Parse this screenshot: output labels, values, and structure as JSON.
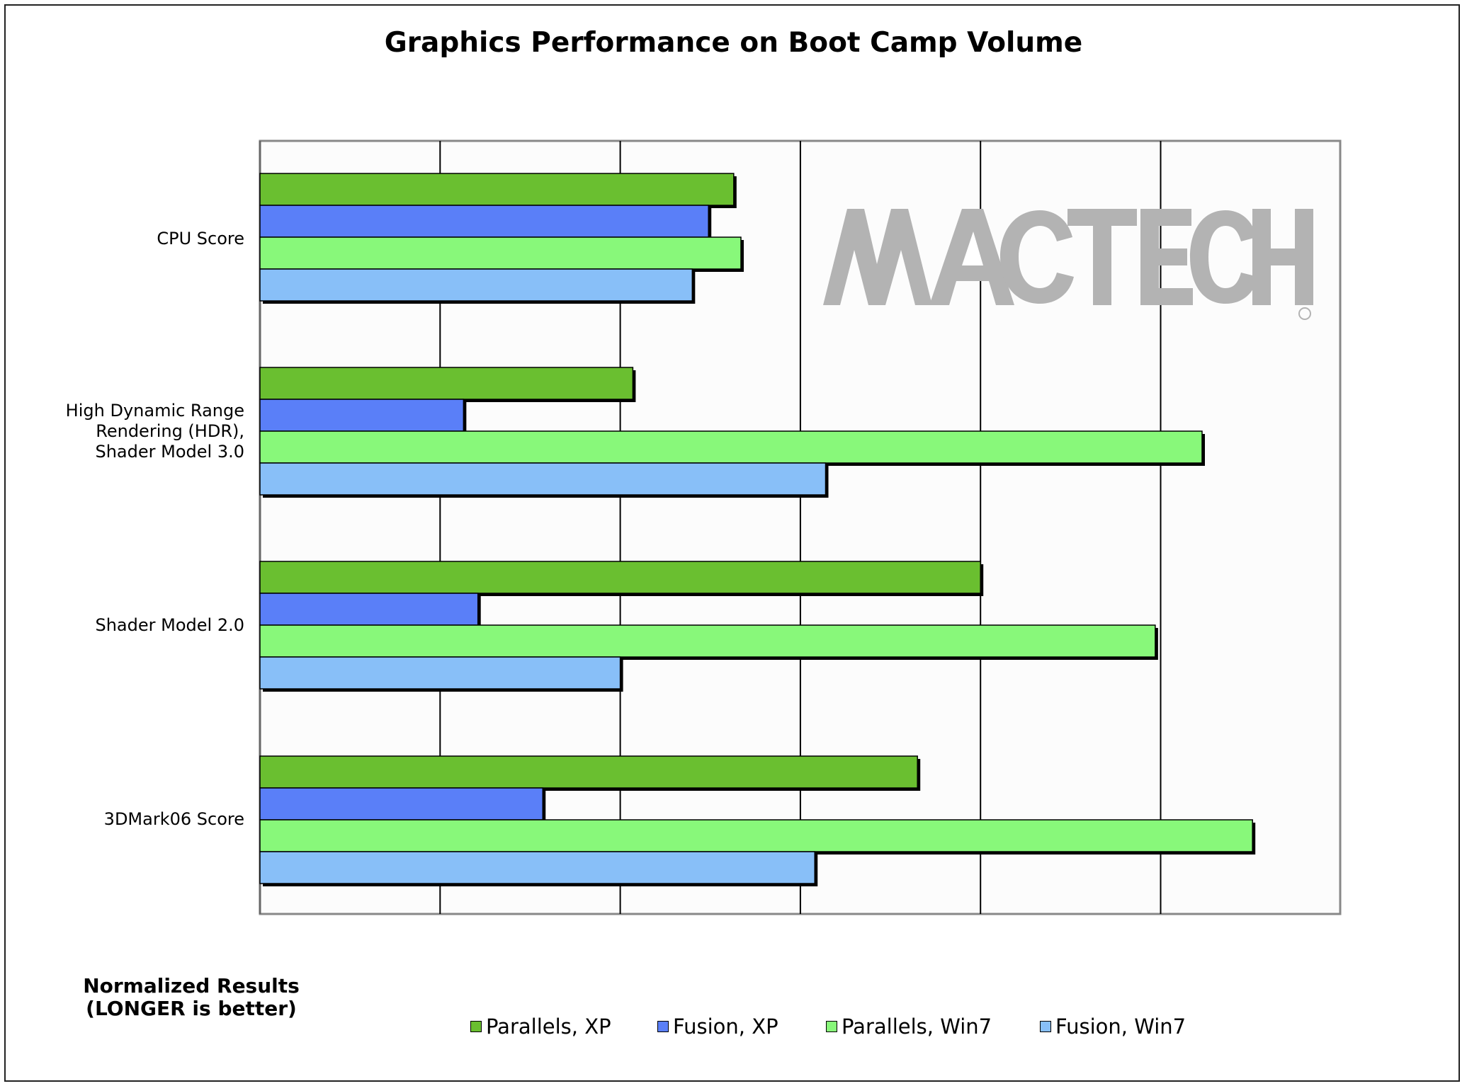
{
  "chart_data": {
    "type": "bar",
    "orientation": "horizontal",
    "title": "Graphics Performance on Boot Camp Volume",
    "categories": [
      "CPU Score",
      "High Dynamic Range\nRendering (HDR),\nShader Model 3.0",
      "Shader Model 2.0",
      "3DMark06 Score"
    ],
    "series": [
      {
        "name": "Parallels, XP",
        "color": "#6abf30",
        "values": [
          2.63,
          2.07,
          4.0,
          3.65
        ]
      },
      {
        "name": "Fusion, XP",
        "color": "#5a7ff8",
        "values": [
          2.49,
          1.13,
          1.21,
          1.57
        ]
      },
      {
        "name": "Parallels, Win7",
        "color": "#88f87a",
        "values": [
          2.67,
          5.23,
          4.97,
          5.51
        ]
      },
      {
        "name": "Fusion, Win7",
        "color": "#88bff8",
        "values": [
          2.4,
          3.14,
          2.0,
          3.08
        ]
      }
    ],
    "xlim": [
      0,
      6
    ],
    "grid": true,
    "legend_position": "bottom",
    "note": "Normalized Results\n(LONGER is better)",
    "watermark": "MACTECH"
  }
}
